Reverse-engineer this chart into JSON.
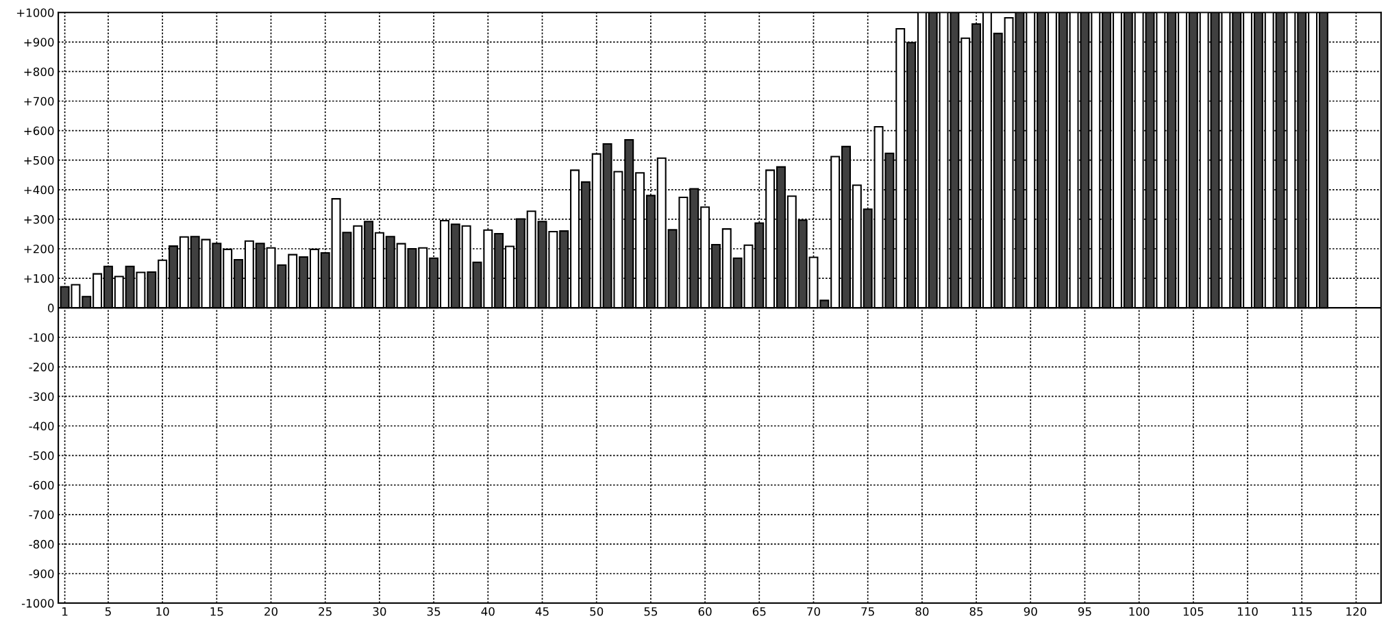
{
  "chart_data": {
    "type": "bar",
    "x": [
      1,
      2,
      3,
      4,
      5,
      6,
      7,
      8,
      9,
      10,
      11,
      12,
      13,
      14,
      15,
      16,
      17,
      18,
      19,
      20,
      21,
      22,
      23,
      24,
      25,
      26,
      27,
      28,
      29,
      30,
      31,
      32,
      33,
      34,
      35,
      36,
      37,
      38,
      39,
      40,
      41,
      42,
      43,
      44,
      45,
      46,
      47,
      48,
      49,
      50,
      51,
      52,
      53,
      54,
      55,
      56,
      57,
      58,
      59,
      60,
      61,
      62,
      63,
      64,
      65,
      66,
      67,
      68,
      69,
      70,
      71,
      72,
      73,
      74,
      75,
      76,
      77,
      78,
      79,
      80,
      81,
      82,
      83,
      84,
      85,
      86,
      87,
      88,
      89,
      90,
      91,
      92,
      93,
      94,
      95,
      96,
      97,
      98,
      99,
      100,
      101,
      102,
      103,
      104,
      105,
      106,
      107,
      108,
      109,
      110,
      111,
      112,
      113,
      114,
      115,
      116,
      117
    ],
    "values": [
      71,
      78,
      38,
      115,
      140,
      106,
      140,
      120,
      121,
      161,
      209,
      240,
      241,
      231,
      218,
      198,
      163,
      226,
      218,
      203,
      145,
      180,
      172,
      198,
      186,
      369,
      255,
      277,
      292,
      254,
      241,
      217,
      200,
      203,
      168,
      295,
      283,
      277,
      154,
      263,
      251,
      208,
      301,
      327,
      292,
      258,
      260,
      466,
      426,
      521,
      555,
      461,
      569,
      457,
      380,
      507,
      264,
      374,
      403,
      341,
      214,
      267,
      168,
      212,
      287,
      466,
      477,
      378,
      297,
      171,
      25,
      512,
      546,
      415,
      334,
      613,
      523,
      945,
      898,
      1000,
      1000,
      1000,
      1000,
      913,
      961,
      1000,
      929,
      982,
      1000,
      1000,
      1000,
      1000,
      1000,
      1000,
      1000,
      1000,
      1000,
      1000,
      1000,
      1000,
      1000,
      1000,
      1000,
      1000,
      1000,
      1000,
      1000,
      1000,
      1000,
      1000,
      1000,
      1000,
      1000,
      1000,
      1000,
      1000,
      1000
    ],
    "colors": [
      "#404040",
      "#ffffff",
      "#404040",
      "#ffffff",
      "#404040",
      "#ffffff",
      "#404040",
      "#ffffff",
      "#404040",
      "#ffffff",
      "#404040",
      "#ffffff",
      "#404040",
      "#ffffff",
      "#404040",
      "#ffffff",
      "#404040",
      "#ffffff",
      "#404040",
      "#ffffff",
      "#404040",
      "#ffffff",
      "#404040",
      "#ffffff",
      "#404040",
      "#ffffff",
      "#404040",
      "#ffffff",
      "#404040",
      "#ffffff",
      "#404040",
      "#ffffff",
      "#404040",
      "#ffffff",
      "#404040",
      "#ffffff",
      "#404040",
      "#ffffff",
      "#404040",
      "#ffffff",
      "#404040",
      "#ffffff",
      "#404040",
      "#ffffff",
      "#404040",
      "#ffffff",
      "#404040",
      "#ffffff",
      "#404040",
      "#ffffff",
      "#404040",
      "#ffffff",
      "#404040",
      "#ffffff",
      "#404040",
      "#ffffff",
      "#404040",
      "#ffffff",
      "#404040",
      "#ffffff",
      "#404040",
      "#ffffff",
      "#404040",
      "#ffffff",
      "#404040",
      "#ffffff",
      "#404040",
      "#ffffff",
      "#404040",
      "#ffffff",
      "#404040",
      "#ffffff",
      "#404040",
      "#ffffff",
      "#404040",
      "#ffffff",
      "#404040",
      "#ffffff",
      "#404040",
      "#ffffff",
      "#404040",
      "#ffffff",
      "#404040",
      "#ffffff",
      "#404040",
      "#ffffff",
      "#404040",
      "#ffffff",
      "#404040",
      "#ffffff",
      "#404040",
      "#ffffff",
      "#404040",
      "#ffffff",
      "#404040",
      "#ffffff",
      "#404040",
      "#ffffff",
      "#404040",
      "#ffffff",
      "#404040",
      "#ffffff",
      "#404040",
      "#ffffff",
      "#404040",
      "#ffffff",
      "#404040",
      "#ffffff",
      "#404040",
      "#ffffff",
      "#404040",
      "#ffffff",
      "#404040",
      "#ffffff",
      "#404040",
      "#ffffff",
      "#404040"
    ],
    "xlim": [
      0.4,
      122.3
    ],
    "xticks": [
      1,
      5,
      10,
      15,
      20,
      25,
      30,
      35,
      40,
      45,
      50,
      55,
      60,
      65,
      70,
      75,
      80,
      85,
      90,
      95,
      100,
      105,
      110,
      115,
      120
    ],
    "ylim": [
      -1000,
      1000
    ],
    "yticks": [
      {
        "value": -1000,
        "label": "-1000"
      },
      {
        "value": -900,
        "label": "-900"
      },
      {
        "value": -800,
        "label": "-800"
      },
      {
        "value": -700,
        "label": "-700"
      },
      {
        "value": -600,
        "label": "-600"
      },
      {
        "value": -500,
        "label": "-500"
      },
      {
        "value": -400,
        "label": "-400"
      },
      {
        "value": -300,
        "label": "-300"
      },
      {
        "value": -200,
        "label": "-200"
      },
      {
        "value": -100,
        "label": "-100"
      },
      0,
      {
        "value": 100,
        "label": "+100"
      },
      {
        "value": 200,
        "label": "+200"
      },
      {
        "value": 300,
        "label": "+300"
      },
      {
        "value": 400,
        "label": "+400"
      },
      {
        "value": 500,
        "label": "+500"
      },
      {
        "value": 600,
        "label": "+600"
      },
      {
        "value": 700,
        "label": "+700"
      },
      {
        "value": 800,
        "label": "+800"
      },
      {
        "value": 900,
        "label": "+900"
      },
      {
        "value": 1000,
        "label": "+1000"
      }
    ],
    "grid": true
  }
}
